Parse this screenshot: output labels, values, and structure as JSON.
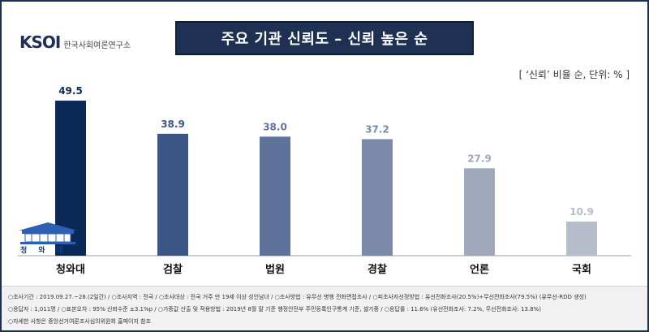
{
  "logo": {
    "mark": "KSOI",
    "text": "한국사회여론연구소"
  },
  "unit_note": "[ ‘신뢰’ 비율 순, 단위: % ]",
  "bluehouse_label": "청와대",
  "colors": [
    "#0c2a57",
    "#3b5585",
    "#5e729c",
    "#7b8aab",
    "#a0a8bb",
    "#b6bcca"
  ],
  "chart_data": {
    "type": "bar",
    "title": "주요 기관 신뢰도 – 신뢰 높은 순",
    "xlabel": "",
    "ylabel": "",
    "categories": [
      "청와대",
      "검찰",
      "법원",
      "경찰",
      "언론",
      "국회"
    ],
    "values": [
      49.5,
      38.9,
      38.0,
      37.2,
      27.9,
      10.9
    ],
    "value_labels": [
      "49.5",
      "38.9",
      "38.0",
      "37.2",
      "27.9",
      "10.9"
    ],
    "ylim": [
      0,
      50
    ],
    "grid": false
  },
  "footer": {
    "line1": "○조사기간 : 2019.09.27.~28.(2일간) / ○조사지역 : 전국 / ○조사대상 : 전국 거주 만 19세 이상 성인남녀 / ○조사방법 : 유무선 병행 전화면접조사 / ○피조사자선정방법 : 유선전화조사(20.5%)+무선전화조사(79.5%) (유무선-RDD 생성)",
    "line2": "○응답자 : 1,011명 / ○표본오차 : 95% 신뢰수준 ±3.1%p / ○가중값 산출 및 적용방법 : 2019년 8월 말 기준 행정안전부 주민등록인구통계 기준, 셀가중 / ○응답률 : 11.6% (유선전화조사: 7.2%, 무선전화조사: 13.8%)",
    "line3": "○자세한 사항은 중앙선거여론조사심의위원회 홈페이지 참조"
  }
}
